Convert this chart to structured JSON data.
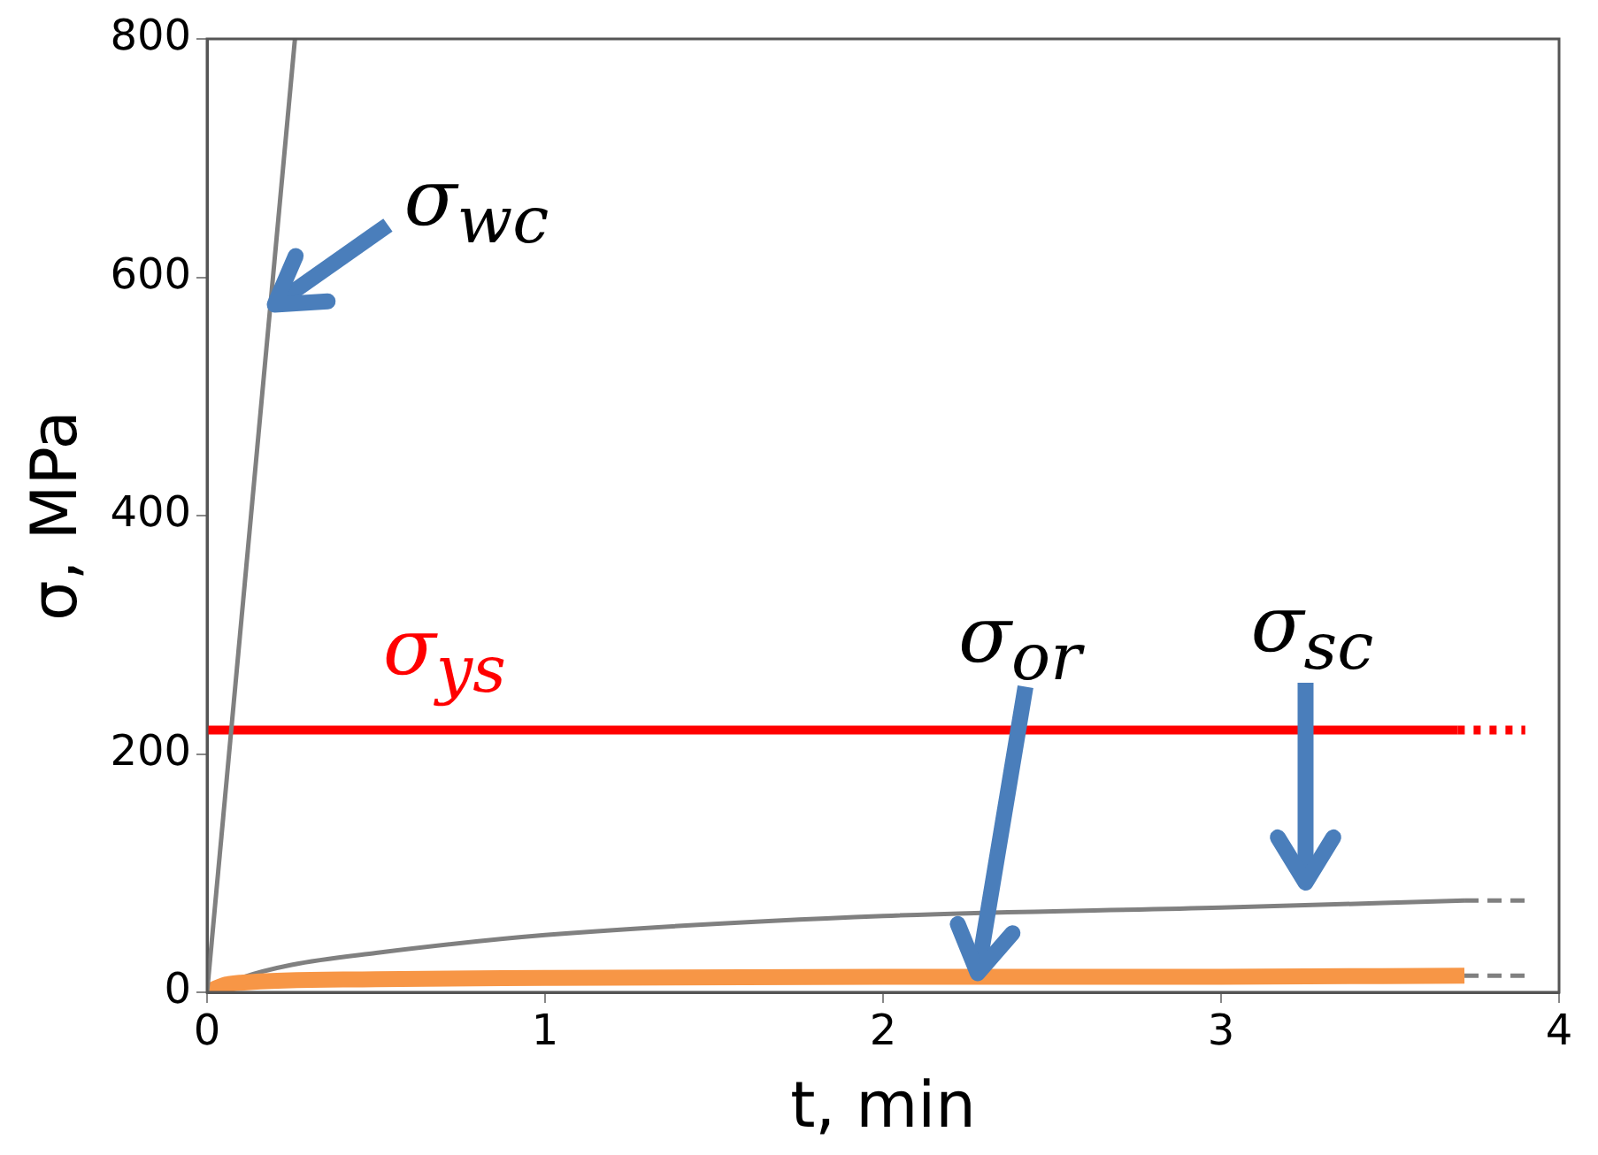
{
  "chart_data": {
    "type": "line",
    "xlabel": "t, min",
    "ylabel": "σ, MPa",
    "xlim": [
      0,
      4
    ],
    "xticks": [
      0,
      1,
      2,
      3,
      4
    ],
    "ylim": [
      0,
      800
    ],
    "yticks": [
      0,
      200,
      400,
      600,
      800
    ],
    "grid": false,
    "legend": false,
    "marker": "none",
    "annotations": [
      {
        "text": "σ$_{wc}$",
        "x": 0.2,
        "y": 577
      },
      {
        "text": "σ$_{or}$",
        "x": 2.28,
        "y": 16
      },
      "σ$_{sc}$"
    ],
    "series": [
      {
        "color": "#808080",
        "x": [
          0,
          0.26
        ],
        "values": [
          0,
          800
        ]
      },
      {
        "name": "σ$_{ys}$",
        "color": "#ff0000",
        "x": [
          0,
          3.7
        ],
        "values": [
          220,
          220
        ]
      },
      {
        "color": "#f79646",
        "x": [
          0,
          0.05,
          0.1,
          0.5,
          1,
          2,
          3,
          3.72
        ],
        "values": [
          0,
          6,
          8,
          11,
          12,
          13,
          13,
          14
        ]
      },
      {
        "color": "#808080",
        "x": [
          0,
          0.1,
          0.25,
          0.5,
          1,
          2,
          3,
          3.72
        ],
        "values": [
          0,
          12,
          23,
          33,
          48,
          64,
          71,
          77
        ]
      },
      {
        "color": "#ff0000",
        "line_style": "dotted",
        "x": [
          3.7,
          3.9
        ],
        "values": [
          220,
          220
        ]
      },
      {
        "color": "#808080",
        "line_style": "dashed",
        "x": [
          3.72,
          3.9
        ],
        "values": [
          77,
          77
        ]
      },
      {
        "color": "#808080",
        "line_style": "dashed",
        "x": [
          3.72,
          3.9
        ],
        "values": [
          14,
          14
        ]
      }
    ]
  }
}
